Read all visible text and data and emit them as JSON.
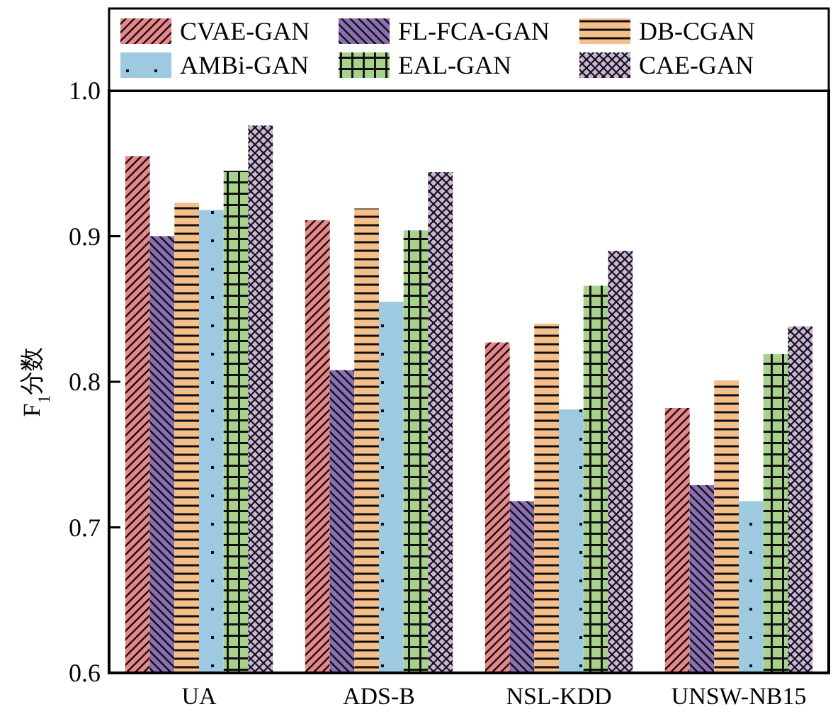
{
  "chart_data": {
    "type": "bar",
    "ylabel": "F$_{1}$分数",
    "categories": [
      "UA",
      "ADS-B",
      "NSL-KDD",
      "UNSW-NB15"
    ],
    "series": [
      {
        "name": "CVAE-GAN",
        "color": "#e8868a",
        "values": [
          0.955,
          0.911,
          0.827,
          0.782
        ]
      },
      {
        "name": "FL-FCA-GAN",
        "color": "#8a6fb5",
        "values": [
          0.9,
          0.808,
          0.718,
          0.729
        ]
      },
      {
        "name": "DB-CGAN",
        "color": "#f5bf8a",
        "values": [
          0.923,
          0.919,
          0.84,
          0.801
        ]
      },
      {
        "name": "AMBi-GAN",
        "color": "#9ecae1",
        "values": [
          0.918,
          0.855,
          0.781,
          0.718
        ]
      },
      {
        "name": "EAL-GAN",
        "color": "#a9d18e",
        "values": [
          0.945,
          0.904,
          0.866,
          0.819
        ]
      },
      {
        "name": "CAE-GAN",
        "color": "#c9b3d9",
        "values": [
          0.976,
          0.944,
          0.89,
          0.838
        ]
      }
    ],
    "ylim": [
      0.6,
      1.0
    ],
    "yticks": [
      0.6,
      0.7,
      0.8,
      0.9,
      {
        "value": 1.0,
        "label": "1.0"
      }
    ],
    "legend": "top"
  }
}
